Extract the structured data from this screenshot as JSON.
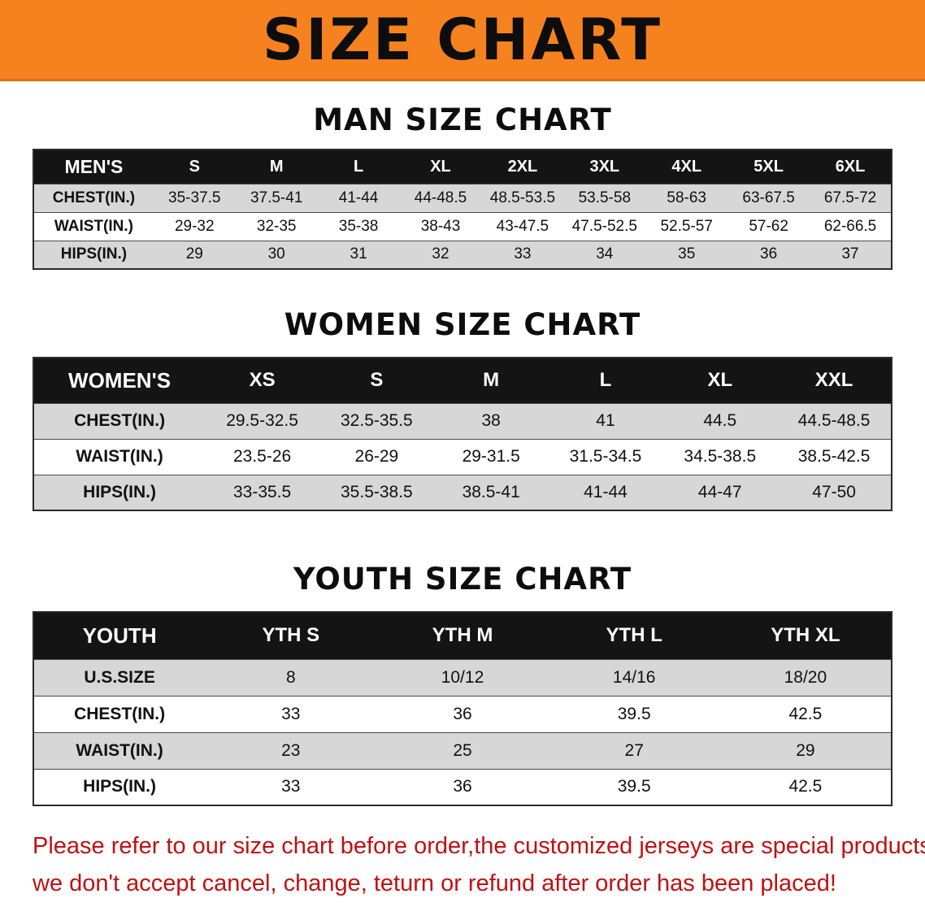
{
  "banner": {
    "title": "SIZE CHART",
    "bg_color": "#f5821f",
    "text_color": "#0d0d0d"
  },
  "sections": [
    {
      "heading": "MAN SIZE CHART",
      "table": {
        "header": [
          "MEN'S",
          "S",
          "M",
          "L",
          "XL",
          "2XL",
          "3XL",
          "4XL",
          "5XL",
          "6XL"
        ],
        "rows": [
          {
            "label": "CHEST(IN.)",
            "values": [
              "35-37.5",
              "37.5-41",
              "41-44",
              "44-48.5",
              "48.5-53.5",
              "53.5-58",
              "58-63",
              "63-67.5",
              "67.5-72"
            ]
          },
          {
            "label": "WAIST(IN.)",
            "values": [
              "29-32",
              "32-35",
              "35-38",
              "38-43",
              "43-47.5",
              "47.5-52.5",
              "52.5-57",
              "57-62",
              "62-66.5"
            ]
          },
          {
            "label": "HIPS(IN.)",
            "values": [
              "29",
              "30",
              "31",
              "32",
              "33",
              "34",
              "35",
              "36",
              "37"
            ]
          }
        ]
      }
    },
    {
      "heading": "WOMEN SIZE CHART",
      "table": {
        "header": [
          "WOMEN'S",
          "XS",
          "S",
          "M",
          "L",
          "XL",
          "XXL"
        ],
        "rows": [
          {
            "label": "CHEST(IN.)",
            "values": [
              "29.5-32.5",
              "32.5-35.5",
              "38",
              "41",
              "44.5",
              "44.5-48.5"
            ]
          },
          {
            "label": "WAIST(IN.)",
            "values": [
              "23.5-26",
              "26-29",
              "29-31.5",
              "31.5-34.5",
              "34.5-38.5",
              "38.5-42.5"
            ]
          },
          {
            "label": "HIPS(IN.)",
            "values": [
              "33-35.5",
              "35.5-38.5",
              "38.5-41",
              "41-44",
              "44-47",
              "47-50"
            ]
          }
        ]
      }
    },
    {
      "heading": "YOUTH SIZE CHART",
      "table": {
        "header": [
          "YOUTH",
          "YTH S",
          "YTH M",
          "YTH L",
          "YTH XL"
        ],
        "rows": [
          {
            "label": "U.S.SIZE",
            "values": [
              "8",
              "10/12",
              "14/16",
              "18/20"
            ]
          },
          {
            "label": "CHEST(IN.)",
            "values": [
              "33",
              "36",
              "39.5",
              "42.5"
            ]
          },
          {
            "label": "WAIST(IN.)",
            "values": [
              "23",
              "25",
              "27",
              "29"
            ]
          },
          {
            "label": "HIPS(IN.)",
            "values": [
              "33",
              "36",
              "39.5",
              "42.5"
            ]
          }
        ]
      }
    }
  ],
  "footer": {
    "line1": "Please refer to our size chart before order,the customized jerseys are special products,",
    "line2": "we don't accept cancel, change, teturn or refund after order has been placed!",
    "text_color": "#c21010"
  }
}
